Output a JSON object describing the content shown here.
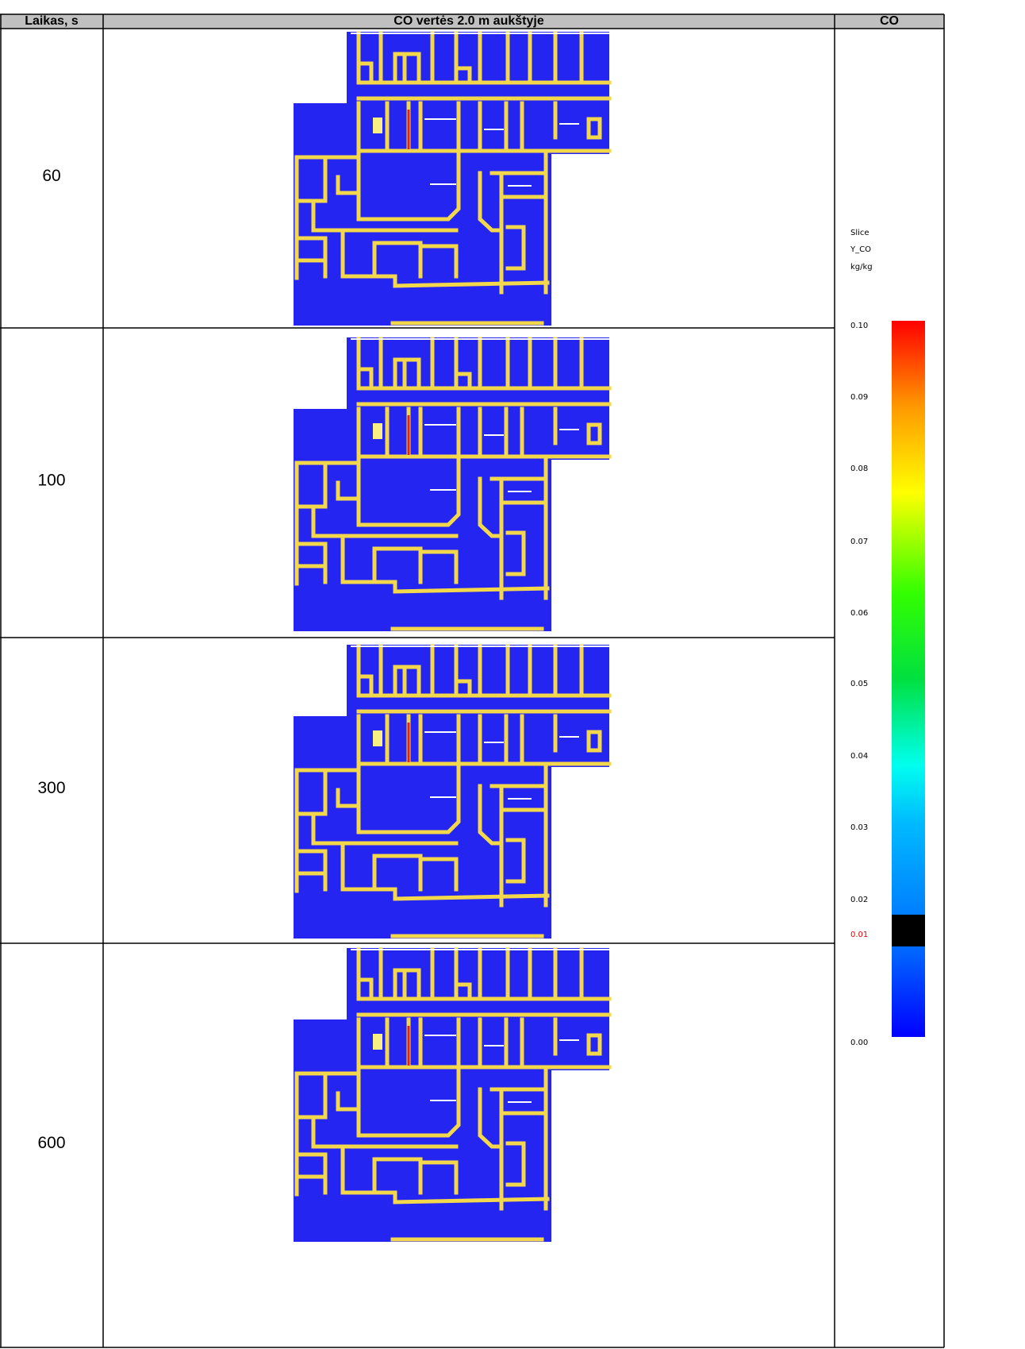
{
  "table": {
    "header": [
      "Laikas, s",
      "CO vertės 2.0 m aukštyje",
      "CO"
    ],
    "rows": [
      60,
      100,
      300,
      600
    ]
  },
  "legend": {
    "lines": [
      "Slice",
      "Y_CO",
      "kg/kg"
    ],
    "ticks": [
      "0.10",
      "0.09",
      "0.08",
      "0.07",
      "0.06",
      "0.05",
      "0.04",
      "0.03",
      "0.02",
      "0.01",
      "0.00"
    ]
  }
}
